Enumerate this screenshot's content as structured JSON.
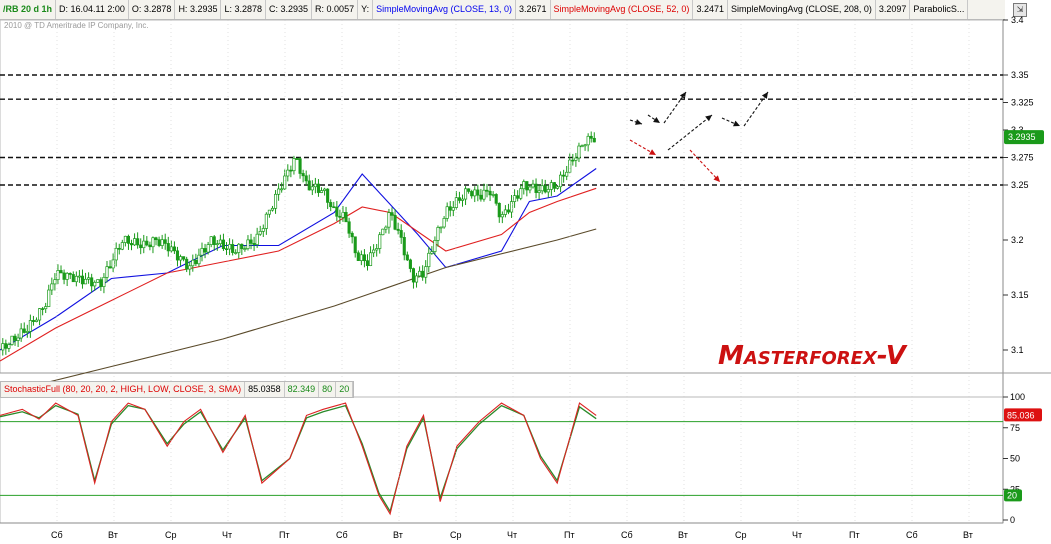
{
  "header": {
    "symbol": "/RB 20 d 1h",
    "date": "D: 16.04.11 2:00",
    "open": "O: 3.2878",
    "high": "H: 3.2935",
    "low": "L: 3.2878",
    "close": "C: 3.2935",
    "range": "R: 0.0057",
    "y": "Y:",
    "sma13_name": "SimpleMovingAvg (CLOSE, 13, 0)",
    "sma13_value": "3.2671",
    "sma52_name": "SimpleMovingAvg (CLOSE, 52, 0)",
    "sma52_value": "3.2471",
    "sma208_name": "SimpleMovingAvg (CLOSE, 208, 0)",
    "sma208_value": "3.2097",
    "parabolic_name": "ParabolicS..."
  },
  "copyright": "2010 @ TD Ameritrade IP Company, Inc.",
  "price_axis_labels": [
    "3.4",
    "3.35",
    "3.325",
    "3.3",
    "3.275",
    "3.25",
    "3.2",
    "3.15",
    "3.1"
  ],
  "last_price_badge": "3.2935",
  "logo": "Masterforex-V",
  "stoch": {
    "name": "StochasticFull (80, 20, 20, 2, HIGH, LOW, CLOSE, 3, SMA)",
    "v1": "85.0358",
    "v2": "82.349",
    "v3": "80",
    "v4": "20",
    "badge_value": "85.036",
    "badge_20": "20"
  },
  "colors": {
    "sma13": "#1010e0",
    "sma52": "#e02020",
    "sma208": "#5a4a2a",
    "candle": "#1a9a1a",
    "stoch_k": "#dd2222",
    "stoch_d": "#2a8a2a",
    "badge_green": "#1a9a1a",
    "badge_red": "#dd1111"
  },
  "chart_data": [
    {
      "type": "line",
      "title": "/RB 20 d 1h",
      "x_tick_labels": [
        "Сб",
        "Вт",
        "Ср",
        "Чт",
        "Пт",
        "Сб",
        "Вт",
        "Ср",
        "Чт",
        "Пт",
        "Сб",
        "Вт",
        "Ср",
        "Чт",
        "Пт",
        "Сб",
        "Вт"
      ],
      "ylim": [
        3.08,
        3.4
      ],
      "y_tick_labels": [
        "3.4",
        "3.35",
        "3.325",
        "3.3",
        "3.275",
        "3.25",
        "3.2",
        "3.15",
        "3.1"
      ],
      "series": [
        {
          "name": "SimpleMovingAvg (CLOSE, 13, 0)",
          "x": [
            0,
            10,
            20,
            30,
            40,
            50,
            60,
            65,
            75,
            80,
            90,
            95,
            100,
            107
          ],
          "values": [
            3.1,
            3.13,
            3.165,
            3.17,
            3.195,
            3.195,
            3.225,
            3.26,
            3.205,
            3.175,
            3.19,
            3.235,
            3.24,
            3.265
          ]
        },
        {
          "name": "SimpleMovingAvg (CLOSE, 52, 0)",
          "x": [
            0,
            10,
            20,
            30,
            40,
            50,
            60,
            65,
            70,
            80,
            90,
            95,
            100,
            107
          ],
          "values": [
            3.09,
            3.12,
            3.145,
            3.17,
            3.18,
            3.19,
            3.215,
            3.23,
            3.225,
            3.19,
            3.205,
            3.225,
            3.235,
            3.247
          ]
        },
        {
          "name": "SimpleMovingAvg (CLOSE, 208, 0)",
          "x": [
            0,
            20,
            40,
            60,
            80,
            100,
            107
          ],
          "values": [
            3.06,
            3.085,
            3.11,
            3.14,
            3.175,
            3.2,
            3.21
          ]
        }
      ],
      "close_price_path": {
        "x": [
          0,
          5,
          8,
          10,
          14,
          18,
          22,
          26,
          28,
          30,
          34,
          38,
          42,
          46,
          50,
          53,
          55,
          58,
          60,
          62,
          64,
          66,
          68,
          70,
          72,
          74,
          76,
          78,
          80,
          84,
          86,
          88,
          90,
          94,
          97,
          100,
          103,
          105,
          107
        ],
        "values": [
          3.1,
          3.12,
          3.14,
          3.17,
          3.165,
          3.16,
          3.2,
          3.195,
          3.2,
          3.195,
          3.175,
          3.2,
          3.19,
          3.2,
          3.245,
          3.275,
          3.25,
          3.245,
          3.225,
          3.22,
          3.185,
          3.18,
          3.2,
          3.225,
          3.2,
          3.165,
          3.17,
          3.2,
          3.225,
          3.245,
          3.24,
          3.245,
          3.22,
          3.25,
          3.245,
          3.25,
          3.275,
          3.29,
          3.2935
        ]
      },
      "horizontal_levels": [
        3.35,
        3.328,
        3.275,
        3.25
      ],
      "last_value": 3.2935
    },
    {
      "type": "line",
      "title": "StochasticFull (80, 20, 20, 2, HIGH, LOW, CLOSE, 3, SMA)",
      "ylim": [
        0,
        100
      ],
      "y_tick_labels": [
        "100",
        "75",
        "50",
        "25",
        "0"
      ],
      "levels": [
        80,
        20
      ],
      "series": [
        {
          "name": "K",
          "x": [
            0,
            4,
            7,
            10,
            14,
            17,
            20,
            23,
            26,
            30,
            33,
            36,
            40,
            44,
            47,
            52,
            55,
            58,
            62,
            65,
            68,
            70,
            73,
            76,
            79,
            82,
            86,
            90,
            94,
            97,
            100,
            104,
            107
          ],
          "values": [
            85,
            90,
            82,
            95,
            85,
            30,
            80,
            95,
            90,
            60,
            80,
            90,
            55,
            85,
            30,
            50,
            85,
            90,
            95,
            60,
            20,
            5,
            60,
            85,
            15,
            60,
            80,
            95,
            85,
            50,
            30,
            95,
            85.0358
          ]
        },
        {
          "name": "D",
          "x": [
            0,
            4,
            7,
            10,
            14,
            17,
            20,
            23,
            26,
            30,
            33,
            36,
            40,
            44,
            47,
            52,
            55,
            58,
            62,
            65,
            68,
            70,
            73,
            76,
            79,
            82,
            86,
            90,
            94,
            97,
            100,
            104,
            107
          ],
          "values": [
            84,
            88,
            83,
            93,
            86,
            32,
            78,
            93,
            90,
            62,
            78,
            88,
            57,
            83,
            32,
            50,
            83,
            88,
            93,
            62,
            22,
            7,
            58,
            83,
            18,
            58,
            78,
            93,
            85,
            52,
            32,
            92,
            82.349
          ]
        }
      ]
    }
  ]
}
